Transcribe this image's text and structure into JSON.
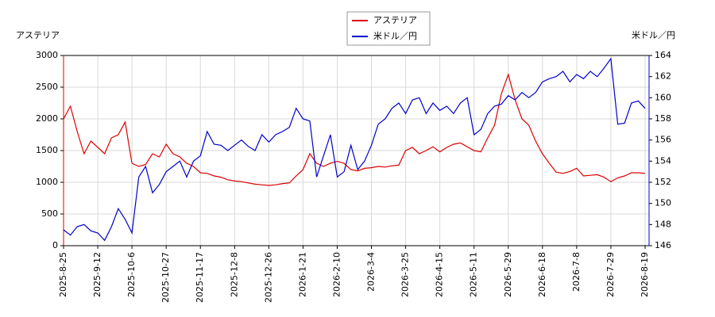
{
  "chart_data": {
    "type": "line",
    "y_label": "アステリア",
    "y2_label": "米ドル／円",
    "categories": [
      "2025-8-25",
      null,
      null,
      null,
      null,
      "2025-9-12",
      null,
      null,
      null,
      null,
      "2025-10-6",
      null,
      null,
      null,
      null,
      "2025-10-27",
      null,
      null,
      null,
      null,
      "2025-11-17",
      null,
      null,
      null,
      null,
      "2025-12-8",
      null,
      null,
      null,
      null,
      "2025-12-26",
      null,
      null,
      null,
      null,
      "2026-1-21",
      null,
      null,
      null,
      null,
      "2026-2-10",
      null,
      null,
      null,
      null,
      "2026-3-4",
      null,
      null,
      null,
      null,
      "2026-3-25",
      null,
      null,
      null,
      null,
      "2026-4-15",
      null,
      null,
      null,
      null,
      "2026-5-11",
      null,
      null,
      null,
      null,
      "2026-5-29",
      null,
      null,
      null,
      null,
      "2026-6-18",
      null,
      null,
      null,
      null,
      "2026-7-8",
      null,
      null,
      null,
      null,
      "2026-7-29",
      null,
      null,
      null,
      null,
      "2026-8-19"
    ],
    "series": [
      {
        "name": "アステリア",
        "color": "#dd0000",
        "values": [
          2000,
          2200,
          1800,
          1450,
          1650,
          1550,
          1450,
          1700,
          1750,
          1950,
          1300,
          1250,
          1280,
          1450,
          1400,
          1600,
          1450,
          1400,
          1300,
          1250,
          1150,
          1140,
          1100,
          1080,
          1040,
          1020,
          1010,
          990,
          970,
          960,
          950,
          960,
          980,
          990,
          1100,
          1200,
          1450,
          1300,
          1250,
          1300,
          1330,
          1300,
          1200,
          1180,
          1220,
          1230,
          1250,
          1240,
          1260,
          1270,
          1500,
          1550,
          1450,
          1500,
          1560,
          1480,
          1550,
          1600,
          1620,
          1560,
          1500,
          1480,
          1700,
          1900,
          2400,
          2700,
          2300,
          2000,
          1900,
          1650,
          1450,
          1300,
          1160,
          1140,
          1170,
          1220,
          1100,
          1110,
          1120,
          1080,
          1010,
          1070,
          1100,
          1150,
          1150,
          1140
        ]
      },
      {
        "name": "米ドル／円",
        "color": "#0000cc",
        "axis": "y2",
        "values": [
          147.5,
          147.0,
          147.8,
          148.0,
          147.4,
          147.2,
          146.5,
          147.8,
          149.5,
          148.5,
          147.2,
          152.5,
          153.5,
          151.0,
          151.8,
          153.0,
          153.5,
          154.0,
          152.5,
          154.0,
          154.5,
          156.8,
          155.6,
          155.5,
          155.0,
          155.5,
          156.0,
          155.4,
          155.0,
          156.5,
          155.8,
          156.5,
          156.8,
          157.2,
          159.0,
          158.0,
          157.8,
          152.5,
          154.5,
          156.5,
          152.5,
          153.0,
          155.5,
          153.2,
          154.0,
          155.5,
          157.5,
          158.0,
          159.0,
          159.5,
          158.5,
          159.8,
          160.0,
          158.5,
          159.5,
          158.8,
          159.2,
          158.5,
          159.5,
          160.0,
          156.5,
          157.0,
          158.5,
          159.2,
          159.4,
          160.2,
          159.8,
          160.5,
          160.0,
          160.5,
          161.5,
          161.8,
          162.0,
          162.5,
          161.5,
          162.2,
          161.8,
          162.5,
          162.0,
          162.8,
          163.7,
          157.5,
          157.6,
          159.5,
          159.7,
          159.0
        ]
      }
    ],
    "ylim": [
      0,
      3000
    ],
    "yticks": [
      0,
      500,
      1000,
      1500,
      2000,
      2500,
      3000
    ],
    "y2lim": [
      146,
      164
    ],
    "y2ticks": [
      146,
      148,
      150,
      152,
      154,
      156,
      158,
      160,
      162,
      164
    ],
    "grid": true,
    "legend": "top"
  }
}
